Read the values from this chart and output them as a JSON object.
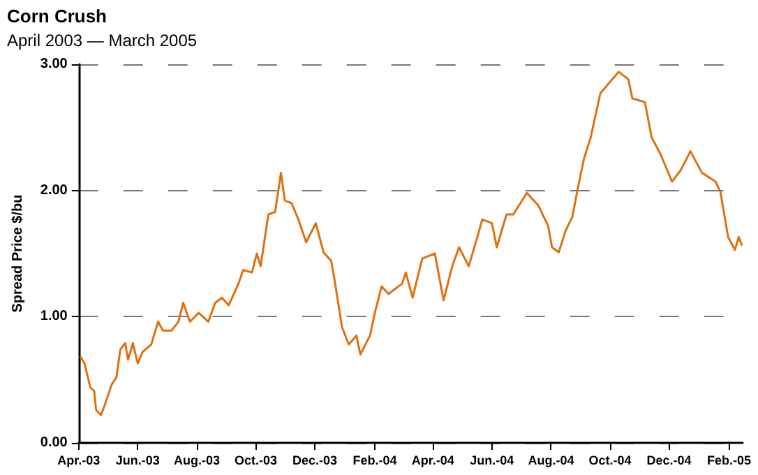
{
  "chart_data": {
    "type": "line",
    "title": "Corn Crush",
    "subtitle": "April 2003 — March 2005",
    "ylabel": "Spread Price $/bu",
    "x": [
      "2003-04-03",
      "2003-04-07",
      "2003-04-13",
      "2003-04-17",
      "2003-04-19",
      "2003-04-24",
      "2003-04-28",
      "2003-05-05",
      "2003-05-10",
      "2003-05-14",
      "2003-05-19",
      "2003-05-22",
      "2003-05-27",
      "2003-06-01",
      "2003-06-06",
      "2003-06-15",
      "2003-06-22",
      "2003-06-27",
      "2003-07-06",
      "2003-07-13",
      "2003-07-18",
      "2003-07-25",
      "2003-08-03",
      "2003-08-13",
      "2003-08-20",
      "2003-08-27",
      "2003-09-03",
      "2003-09-13",
      "2003-09-18",
      "2003-09-27",
      "2003-10-02",
      "2003-10-06",
      "2003-10-14",
      "2003-10-21",
      "2003-10-27",
      "2003-10-31",
      "2003-11-07",
      "2003-11-14",
      "2003-11-22",
      "2003-12-02",
      "2003-12-10",
      "2003-12-18",
      "2003-12-22",
      "2003-12-29",
      "2004-01-05",
      "2004-01-13",
      "2004-01-17",
      "2004-01-27",
      "2004-02-01",
      "2004-02-08",
      "2004-02-15",
      "2004-02-29",
      "2004-03-04",
      "2004-03-11",
      "2004-03-21",
      "2004-04-03",
      "2004-04-12",
      "2004-04-21",
      "2004-04-28",
      "2004-05-08",
      "2004-05-18",
      "2004-05-22",
      "2004-06-01",
      "2004-06-06",
      "2004-06-16",
      "2004-06-23",
      "2004-07-07",
      "2004-07-19",
      "2004-07-29",
      "2004-08-02",
      "2004-08-09",
      "2004-08-16",
      "2004-08-23",
      "2004-08-28",
      "2004-09-04",
      "2004-09-11",
      "2004-09-21",
      "2004-10-01",
      "2004-10-10",
      "2004-10-20",
      "2004-10-24",
      "2004-11-06",
      "2004-11-13",
      "2004-11-22",
      "2004-12-04",
      "2004-12-13",
      "2004-12-23",
      "2005-01-04",
      "2005-01-18",
      "2005-01-23",
      "2005-01-31",
      "2005-02-07",
      "2005-02-11",
      "2005-02-14"
    ],
    "series": [
      {
        "color": "#e07010",
        "values": [
          0.68,
          0.63,
          0.44,
          0.41,
          0.26,
          0.22,
          0.3,
          0.46,
          0.52,
          0.74,
          0.79,
          0.66,
          0.79,
          0.63,
          0.72,
          0.78,
          0.96,
          0.89,
          0.89,
          0.96,
          1.11,
          0.96,
          1.03,
          0.96,
          1.11,
          1.15,
          1.09,
          1.26,
          1.37,
          1.35,
          1.5,
          1.4,
          1.81,
          1.83,
          2.14,
          1.92,
          1.9,
          1.77,
          1.59,
          1.74,
          1.51,
          1.44,
          1.26,
          0.92,
          0.78,
          0.85,
          0.7,
          0.85,
          1.03,
          1.24,
          1.18,
          1.26,
          1.35,
          1.15,
          1.46,
          1.5,
          1.13,
          1.4,
          1.55,
          1.4,
          1.66,
          1.77,
          1.74,
          1.55,
          1.81,
          1.81,
          1.98,
          1.88,
          1.72,
          1.55,
          1.51,
          1.68,
          1.79,
          1.99,
          2.25,
          2.42,
          2.77,
          2.86,
          2.94,
          2.88,
          2.73,
          2.7,
          2.42,
          2.29,
          2.07,
          2.16,
          2.31,
          2.14,
          2.07,
          1.99,
          1.63,
          1.53,
          1.63,
          1.57
        ]
      }
    ],
    "xlim": [
      "2003-04-01",
      "2005-02-15"
    ],
    "xticks": [
      {
        "value": "2003-04-01",
        "label": "Apr.-03"
      },
      {
        "value": "2003-06-01",
        "label": "Jun.-03"
      },
      {
        "value": "2003-08-01",
        "label": "Aug.-03"
      },
      {
        "value": "2003-10-01",
        "label": "Oct.-03"
      },
      {
        "value": "2003-12-01",
        "label": "Dec.-03"
      },
      {
        "value": "2004-02-01",
        "label": "Feb.-04"
      },
      {
        "value": "2004-04-01",
        "label": "Apr.-04"
      },
      {
        "value": "2004-06-01",
        "label": "Jun.-04"
      },
      {
        "value": "2004-08-01",
        "label": "Aug.-04"
      },
      {
        "value": "2004-10-01",
        "label": "Oct.-04"
      },
      {
        "value": "2004-12-01",
        "label": "Dec.-04"
      },
      {
        "value": "2005-02-01",
        "label": "Feb.-05"
      }
    ],
    "ylim": [
      0,
      3
    ],
    "yticks": [
      {
        "value": 0,
        "label": "0.00"
      },
      {
        "value": 1,
        "label": "1.00"
      },
      {
        "value": 2,
        "label": "2.00"
      },
      {
        "value": 3,
        "label": "3.00"
      }
    ],
    "grid": "y",
    "line_style": "solid",
    "marker": "none"
  }
}
